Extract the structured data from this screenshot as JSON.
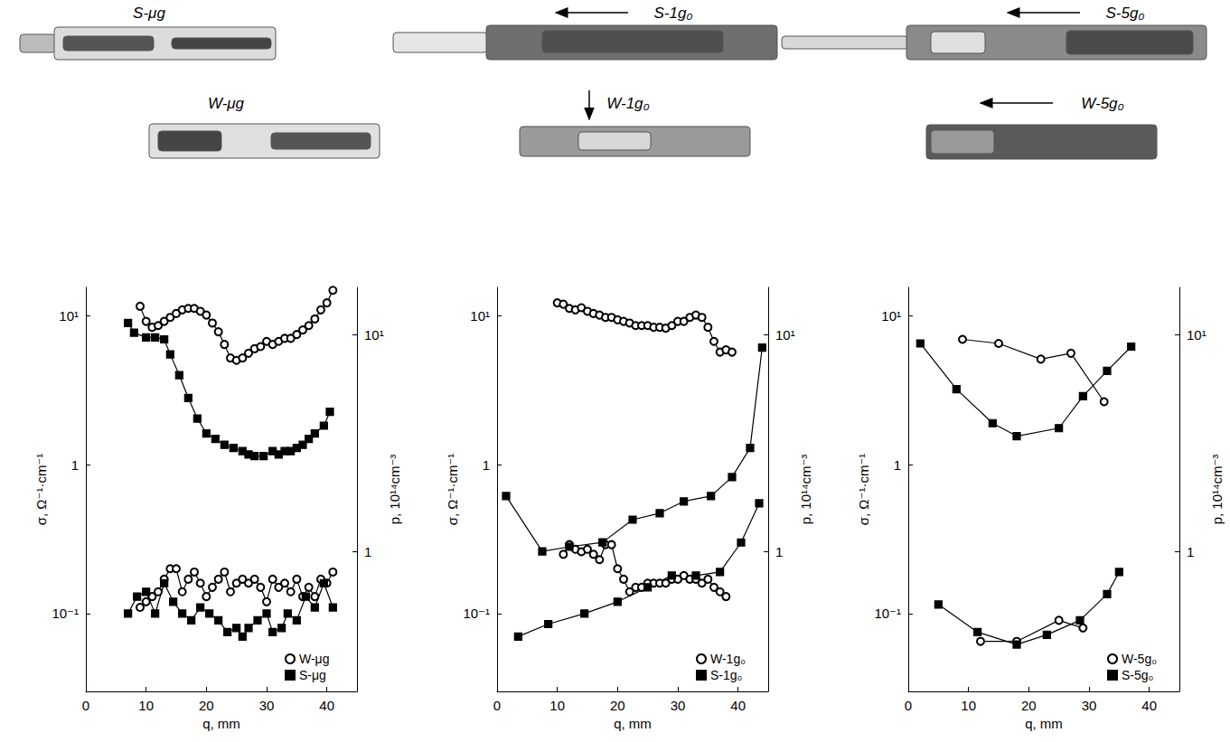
{
  "photos": {
    "labels": [
      "S-μg",
      "S-1g₀",
      "S-5g₀",
      "W-μg",
      "W-1g₀",
      "W-5g₀"
    ]
  },
  "chart_data": [
    {
      "type": "line",
      "x_label": "q, mm",
      "y_label": "σ, Ω⁻¹·cm⁻¹",
      "y2_label": "p, 10¹⁴cm⁻³",
      "xlim": [
        0,
        45
      ],
      "xticks": [
        0,
        10,
        20,
        30,
        40
      ],
      "ylim": [
        0.03,
        15.5
      ],
      "yticks": [
        {
          "value": 0.1,
          "label": "10⁻¹"
        },
        1,
        {
          "value": 10,
          "label": "10¹"
        }
      ],
      "y2lim": [
        0.226,
        16.5
      ],
      "y2ticks": [
        1,
        {
          "value": 10,
          "label": "10¹"
        }
      ],
      "log": "y",
      "grid": false,
      "legend": "lower right",
      "series": [
        {
          "name": "W-μg",
          "color": "#000000",
          "marker": "circle-open",
          "x": [
            9,
            10,
            11,
            12,
            13,
            14,
            15,
            16,
            17,
            18,
            19,
            20,
            21,
            22,
            23,
            24,
            25,
            26,
            27,
            28,
            29,
            30,
            31,
            32,
            33,
            34,
            35,
            36,
            37,
            38,
            39,
            40,
            41
          ],
          "values": [
            0.11,
            0.12,
            0.13,
            0.14,
            0.17,
            0.2,
            0.2,
            0.14,
            0.17,
            0.19,
            0.16,
            0.13,
            0.15,
            0.17,
            0.19,
            0.14,
            0.16,
            0.17,
            0.16,
            0.17,
            0.15,
            0.12,
            0.17,
            0.15,
            0.16,
            0.14,
            0.17,
            0.13,
            0.15,
            0.13,
            0.17,
            0.16,
            0.19
          ]
        },
        {
          "name": "S-μg",
          "color": "#000000",
          "marker": "square",
          "x": [
            7,
            8.5,
            10,
            11.5,
            13,
            14.5,
            16,
            17.5,
            19,
            20.5,
            22,
            23.5,
            25,
            26,
            27,
            28.5,
            30,
            31,
            32.5,
            33.5,
            35,
            36.5,
            38,
            39.5,
            41
          ],
          "values": [
            0.1,
            0.13,
            0.14,
            0.1,
            0.16,
            0.12,
            0.1,
            0.09,
            0.11,
            0.1,
            0.09,
            0.075,
            0.08,
            0.07,
            0.08,
            0.09,
            0.1,
            0.075,
            0.08,
            0.1,
            0.09,
            0.13,
            0.11,
            0.16,
            0.11
          ]
        },
        {
          "name": "W-μg",
          "color": "#000000",
          "marker": "circle-open",
          "axis": "y2",
          "x": [
            9,
            10,
            11,
            12,
            13,
            14,
            15,
            16,
            17,
            18,
            19,
            20,
            21,
            22,
            23,
            24,
            25,
            26,
            27,
            28,
            29,
            30,
            31,
            32,
            33,
            34,
            35,
            36,
            37,
            38,
            39,
            40,
            41
          ],
          "values": [
            13.5,
            11.5,
            10.8,
            11,
            11.5,
            12,
            12.5,
            13,
            13.2,
            13.2,
            12.8,
            12.3,
            11.3,
            10.3,
            9,
            7.8,
            7.6,
            7.8,
            8.2,
            8.6,
            8.8,
            9.3,
            9,
            9.3,
            9.6,
            9.6,
            10,
            10.5,
            11,
            11.8,
            13,
            14,
            16
          ]
        },
        {
          "name": "S-μg",
          "color": "#000000",
          "marker": "square",
          "axis": "y2",
          "x": [
            7,
            8,
            10,
            11.5,
            13,
            14,
            15.5,
            17,
            18.5,
            20,
            21.5,
            23,
            24.5,
            26,
            27,
            28,
            29.5,
            31,
            32,
            33,
            34,
            35,
            36,
            37,
            38,
            39.5,
            40.5
          ],
          "values": [
            11.3,
            10.2,
            9.7,
            9.7,
            9.5,
            8.1,
            6.5,
            5.1,
            4.1,
            3.5,
            3.3,
            3.1,
            3.0,
            2.9,
            2.8,
            2.75,
            2.75,
            2.9,
            2.8,
            2.9,
            2.9,
            3.0,
            3.1,
            3.3,
            3.5,
            3.8,
            4.4
          ]
        }
      ]
    },
    {
      "type": "line",
      "x_label": "q, mm",
      "y_label": "σ, Ω⁻¹·cm⁻¹",
      "y2_label": "p, 10¹⁴cm⁻³",
      "xlim": [
        0,
        45
      ],
      "xticks": [
        0,
        10,
        20,
        30,
        40
      ],
      "ylim": [
        0.03,
        15.5
      ],
      "yticks": [
        {
          "value": 0.1,
          "label": "10⁻¹"
        },
        1,
        {
          "value": 10,
          "label": "10¹"
        }
      ],
      "y2lim": [
        0.226,
        16.5
      ],
      "y2ticks": [
        1,
        {
          "value": 10,
          "label": "10¹"
        }
      ],
      "log": "y",
      "grid": false,
      "legend": "lower right",
      "series": [
        {
          "name": "W-1g₀",
          "color": "#000000",
          "marker": "circle-open",
          "x": [
            11,
            12,
            13,
            14,
            15,
            16,
            17,
            18,
            19,
            20,
            21,
            22,
            23,
            24,
            25,
            26,
            27,
            28,
            29,
            30,
            31,
            32,
            33,
            34,
            35,
            36,
            37,
            38
          ],
          "values": [
            0.25,
            0.29,
            0.27,
            0.26,
            0.27,
            0.25,
            0.23,
            0.29,
            0.29,
            0.2,
            0.17,
            0.14,
            0.15,
            0.15,
            0.16,
            0.16,
            0.16,
            0.16,
            0.17,
            0.17,
            0.18,
            0.17,
            0.17,
            0.16,
            0.17,
            0.15,
            0.14,
            0.13
          ]
        },
        {
          "name": "S-1g₀",
          "color": "#000000",
          "marker": "square",
          "x": [
            3.5,
            8.5,
            14.5,
            20,
            25,
            29,
            33,
            37,
            40.5,
            43.5
          ],
          "values": [
            0.07,
            0.085,
            0.1,
            0.12,
            0.15,
            0.18,
            0.18,
            0.19,
            0.3,
            0.55
          ]
        },
        {
          "name": "W-1g₀",
          "color": "#000000",
          "marker": "circle-open",
          "axis": "y2",
          "x": [
            10,
            11,
            12,
            13,
            14,
            15,
            16,
            17,
            18,
            19,
            20,
            21,
            22,
            23,
            24,
            25,
            26,
            27,
            28,
            29,
            30,
            31,
            32,
            33,
            34,
            35,
            36,
            37,
            38,
            39
          ],
          "values": [
            14,
            13.8,
            13.2,
            13,
            13.3,
            12.8,
            12.5,
            12.3,
            12,
            12,
            11.7,
            11.5,
            11.3,
            11,
            11,
            11,
            10.8,
            10.8,
            10.7,
            11,
            11.5,
            11.5,
            12,
            12.3,
            12,
            10.8,
            9.3,
            8.3,
            8.5,
            8.3
          ]
        },
        {
          "name": "S-1g₀",
          "color": "#000000",
          "marker": "square",
          "axis": "y2",
          "x": [
            1.5,
            7.5,
            12,
            17.5,
            22.5,
            27,
            31,
            35.5,
            39,
            42,
            44
          ],
          "values": [
            1.8,
            1.0,
            1.05,
            1.1,
            1.4,
            1.5,
            1.7,
            1.8,
            2.2,
            3.0,
            8.7
          ]
        }
      ]
    },
    {
      "type": "line",
      "x_label": "q, mm",
      "y_label": "σ, Ω⁻¹·cm⁻¹",
      "y2_label": "p, 10¹⁴cm⁻³",
      "xlim": [
        0,
        45
      ],
      "xticks": [
        0,
        10,
        20,
        30,
        40
      ],
      "ylim": [
        0.03,
        15.5
      ],
      "yticks": [
        {
          "value": 0.1,
          "label": "10⁻¹"
        },
        1,
        {
          "value": 10,
          "label": "10¹"
        }
      ],
      "y2lim": [
        0.226,
        16.5
      ],
      "y2ticks": [
        1,
        {
          "value": 10,
          "label": "10¹"
        }
      ],
      "log": "y",
      "grid": false,
      "legend": "lower right",
      "series": [
        {
          "name": "W-5g₀",
          "color": "#000000",
          "marker": "circle-open",
          "x": [
            12,
            18,
            25,
            29
          ],
          "values": [
            0.065,
            0.065,
            0.09,
            0.08
          ]
        },
        {
          "name": "S-5g₀",
          "color": "#000000",
          "marker": "square",
          "x": [
            5,
            11.5,
            18,
            23,
            28.5,
            33,
            35
          ],
          "values": [
            0.115,
            0.075,
            0.062,
            0.072,
            0.09,
            0.135,
            0.19
          ]
        },
        {
          "name": "W-5g₀",
          "color": "#000000",
          "marker": "circle-open",
          "axis": "y2",
          "x": [
            9,
            15,
            22,
            27,
            32.5
          ],
          "values": [
            9.5,
            9.1,
            7.7,
            8.2,
            4.9
          ]
        },
        {
          "name": "S-5g₀",
          "color": "#000000",
          "marker": "square",
          "axis": "y2",
          "x": [
            2,
            8,
            14,
            18,
            25,
            29,
            33,
            37
          ],
          "values": [
            9.1,
            5.6,
            3.9,
            3.4,
            3.7,
            5.2,
            6.8,
            8.8
          ]
        }
      ]
    }
  ]
}
